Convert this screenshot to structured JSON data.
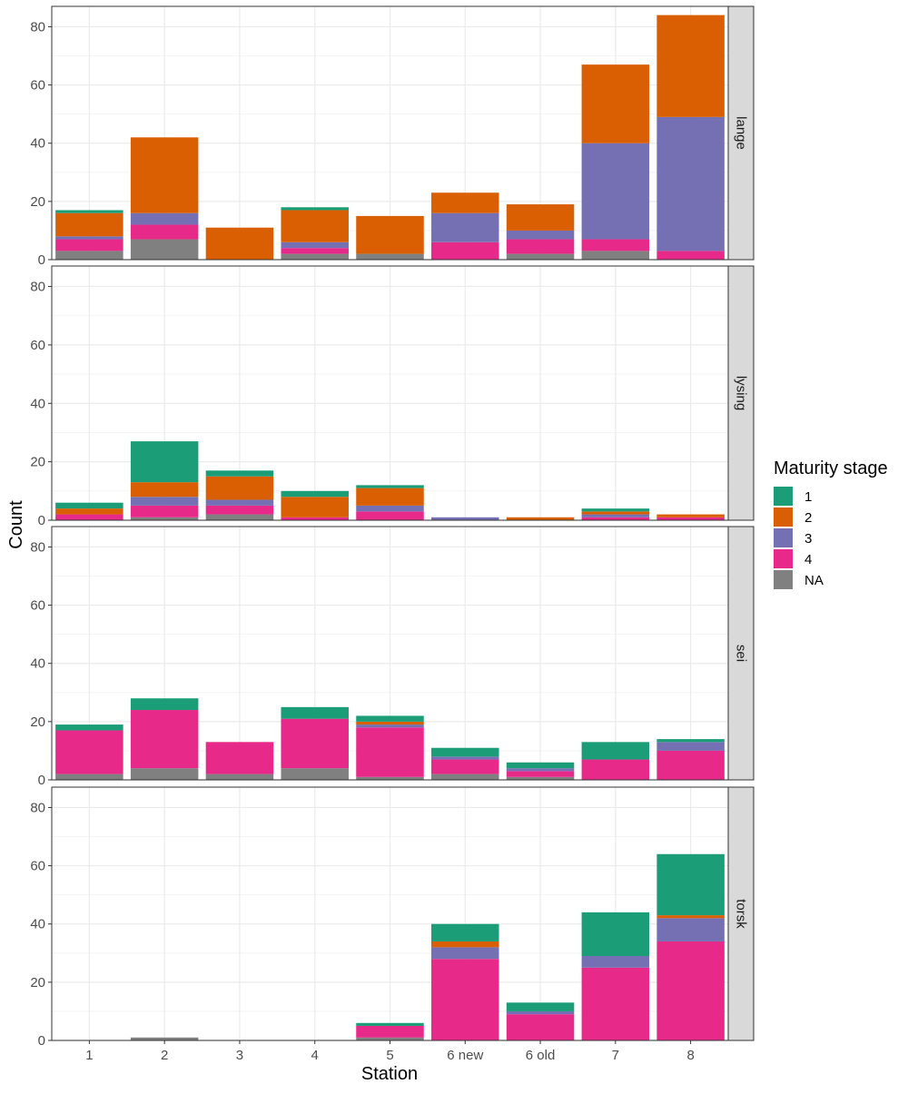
{
  "chart_data": {
    "type": "bar",
    "stacked": true,
    "faceted": true,
    "xlabel": "Station",
    "ylabel": "Count",
    "ylim": [
      0,
      87
    ],
    "yticks": [
      0,
      20,
      40,
      60,
      80
    ],
    "grid": true,
    "legend": {
      "title": "Maturity stage",
      "position": "right",
      "items": [
        {
          "label": "1",
          "color": "#1b9e77"
        },
        {
          "label": "2",
          "color": "#d95f02"
        },
        {
          "label": "3",
          "color": "#7570b3"
        },
        {
          "label": "4",
          "color": "#e7298a"
        },
        {
          "label": "NA",
          "color": "#808080"
        }
      ]
    },
    "categories": [
      "1",
      "2",
      "3",
      "4",
      "5",
      "6 new",
      "6 old",
      "7",
      "8"
    ],
    "stack_order": [
      "NA",
      "4",
      "3",
      "2",
      "1"
    ],
    "facets": [
      {
        "label": "lange",
        "series": [
          {
            "name": "NA",
            "values": [
              3,
              7,
              0,
              2,
              2,
              0,
              2,
              3,
              0
            ]
          },
          {
            "name": "4",
            "values": [
              4,
              5,
              0,
              2,
              0,
              6,
              5,
              4,
              3
            ]
          },
          {
            "name": "3",
            "values": [
              1,
              4,
              0,
              2,
              0,
              10,
              3,
              33,
              46
            ]
          },
          {
            "name": "2",
            "values": [
              8,
              26,
              11,
              11,
              13,
              7,
              9,
              27,
              35
            ]
          },
          {
            "name": "1",
            "values": [
              1,
              0,
              0,
              1,
              0,
              0,
              0,
              0,
              0
            ]
          }
        ]
      },
      {
        "label": "lysing",
        "series": [
          {
            "name": "NA",
            "values": [
              0,
              1,
              2,
              0,
              0,
              0,
              0,
              0,
              0
            ]
          },
          {
            "name": "4",
            "values": [
              2,
              4,
              3,
              1,
              3,
              0,
              0,
              1,
              1
            ]
          },
          {
            "name": "3",
            "values": [
              0,
              3,
              2,
              0,
              2,
              1,
              0,
              1,
              0
            ]
          },
          {
            "name": "2",
            "values": [
              2,
              5,
              8,
              7,
              6,
              0,
              1,
              1,
              1
            ]
          },
          {
            "name": "1",
            "values": [
              2,
              14,
              2,
              2,
              1,
              0,
              0,
              1,
              0
            ]
          }
        ]
      },
      {
        "label": "sei",
        "series": [
          {
            "name": "NA",
            "values": [
              2,
              4,
              2,
              4,
              1,
              2,
              1,
              0,
              0
            ]
          },
          {
            "name": "4",
            "values": [
              15,
              20,
              11,
              17,
              17,
              5,
              2,
              7,
              10
            ]
          },
          {
            "name": "3",
            "values": [
              0,
              0,
              0,
              0,
              1,
              1,
              1,
              0,
              3
            ]
          },
          {
            "name": "2",
            "values": [
              0,
              0,
              0,
              0,
              1,
              0,
              0,
              0,
              0
            ]
          },
          {
            "name": "1",
            "values": [
              2,
              4,
              0,
              4,
              2,
              3,
              2,
              6,
              1
            ]
          }
        ]
      },
      {
        "label": "torsk",
        "series": [
          {
            "name": "NA",
            "values": [
              0,
              1,
              0,
              0,
              1,
              0,
              0,
              0,
              0
            ]
          },
          {
            "name": "4",
            "values": [
              0,
              0,
              0,
              0,
              4,
              28,
              9,
              25,
              34
            ]
          },
          {
            "name": "3",
            "values": [
              0,
              0,
              0,
              0,
              0,
              4,
              1,
              4,
              8
            ]
          },
          {
            "name": "2",
            "values": [
              0,
              0,
              0,
              0,
              0,
              2,
              0,
              0,
              1
            ]
          },
          {
            "name": "1",
            "values": [
              0,
              0,
              0,
              0,
              1,
              6,
              3,
              15,
              21
            ]
          }
        ]
      }
    ]
  }
}
